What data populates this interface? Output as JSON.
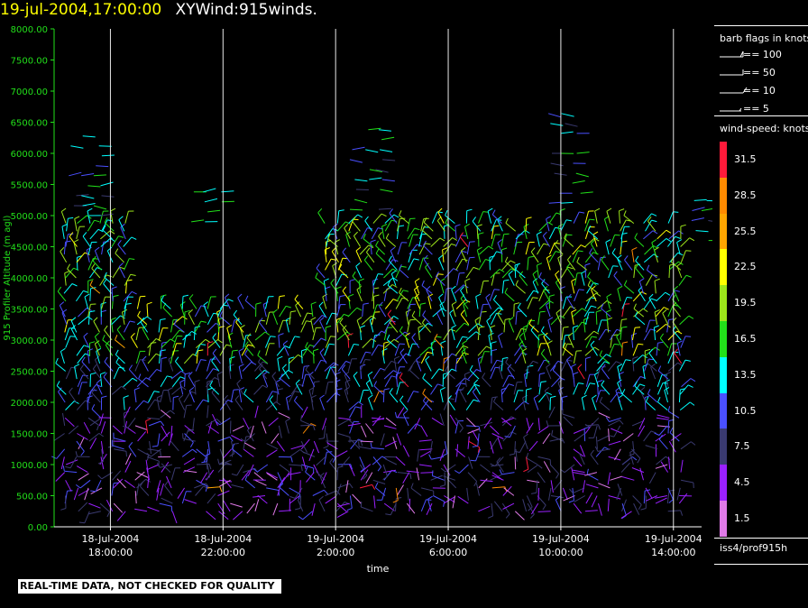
{
  "header": {
    "time": "19-jul-2004,17:00:00",
    "title": "XYWind:915winds."
  },
  "chart_data": {
    "type": "scatter",
    "title": "19-jul-2004,17:00:00 XYWind:915winds.",
    "xlabel": "time",
    "ylabel": "915 Profiler Altitude (m agl)",
    "yticks": [
      "0.00",
      "500.00",
      "1000.00",
      "1500.00",
      "2000.00",
      "2500.00",
      "3000.00",
      "3500.00",
      "4000.00",
      "4500.00",
      "5000.00",
      "5500.00",
      "6000.00",
      "6500.00",
      "7000.00",
      "7500.00",
      "8000.00"
    ],
    "ylim": [
      0,
      8000
    ],
    "xlim_hours_from_first_tick": [
      -2,
      21
    ],
    "xticks": [
      {
        "date": "18-Jul-2004",
        "time": "18:00:00"
      },
      {
        "date": "18-Jul-2004",
        "time": "22:00:00"
      },
      {
        "date": "19-Jul-2004",
        "time": "2:00:00"
      },
      {
        "date": "19-Jul-2004",
        "time": "6:00:00"
      },
      {
        "date": "19-Jul-2004",
        "time": "10:00:00"
      },
      {
        "date": "19-Jul-2004",
        "time": "14:00:00"
      }
    ],
    "grid": "vertical lines at x ticks",
    "color_scale_knots": [
      {
        "value": "31.5",
        "color": "#ff1a3a"
      },
      {
        "value": "28.5",
        "color": "#ff8a00"
      },
      {
        "value": "25.5",
        "color": "#ffa500"
      },
      {
        "value": "22.5",
        "color": "#ffff00"
      },
      {
        "value": "19.5",
        "color": "#9ce51a"
      },
      {
        "value": "16.5",
        "color": "#22e01a"
      },
      {
        "value": "13.5",
        "color": "#00ffff"
      },
      {
        "value": "10.5",
        "color": "#4a50ff"
      },
      {
        "value": "7.5",
        "color": "#3a3a70"
      },
      {
        "value": "4.5",
        "color": "#9a20ff"
      },
      {
        "value": "1.5",
        "color": "#e07ae8"
      }
    ]
  },
  "legend": {
    "barb_title": "barb flags in knots",
    "barb_items": [
      "== 100",
      "== 50",
      "== 10",
      "== 5"
    ],
    "speed_title": "wind-speed: knots",
    "source": "iss4/prof915h"
  },
  "footer": {
    "qc_notice": "REAL-TIME DATA, NOT CHECKED FOR QUALITY"
  }
}
